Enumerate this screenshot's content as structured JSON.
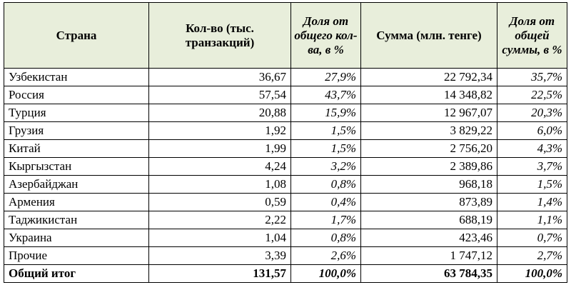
{
  "table": {
    "headers": [
      "Страна",
      "Кол-во (тыс. транзакций)",
      "Доля от общего кол-ва, в %",
      "Сумма (млн. тенге)",
      "Доля от общей суммы, в %"
    ],
    "rows": [
      [
        "Узбекистан",
        "36,67",
        "27,9%",
        "22 792,34",
        "35,7%"
      ],
      [
        "Россия",
        "57,54",
        "43,7%",
        "14 348,82",
        "22,5%"
      ],
      [
        "Турция",
        "20,88",
        "15,9%",
        "12 967,07",
        "20,3%"
      ],
      [
        "Грузия",
        "1,92",
        "1,5%",
        "3 829,22",
        "6,0%"
      ],
      [
        "Китай",
        "1,99",
        "1,5%",
        "2 756,20",
        "4,3%"
      ],
      [
        "Кыргызстан",
        "4,24",
        "3,2%",
        "2 389,86",
        "3,7%"
      ],
      [
        "Азербайджан",
        "1,08",
        "0,8%",
        "968,18",
        "1,5%"
      ],
      [
        "Армения",
        "0,59",
        "0,4%",
        "873,89",
        "1,4%"
      ],
      [
        "Таджикистан",
        "2,22",
        "1,7%",
        "688,19",
        "1,1%"
      ],
      [
        "Украина",
        "1,04",
        "0,8%",
        "423,46",
        "0,7%"
      ],
      [
        "Прочие",
        "3,39",
        "2,6%",
        "1 747,12",
        "2,7%"
      ]
    ],
    "total": [
      "Общий итог",
      "131,57",
      "100,0%",
      "63 784,35",
      "100,0%"
    ]
  },
  "colors": {
    "header_background": "#e8eedb",
    "border": "#000000"
  }
}
